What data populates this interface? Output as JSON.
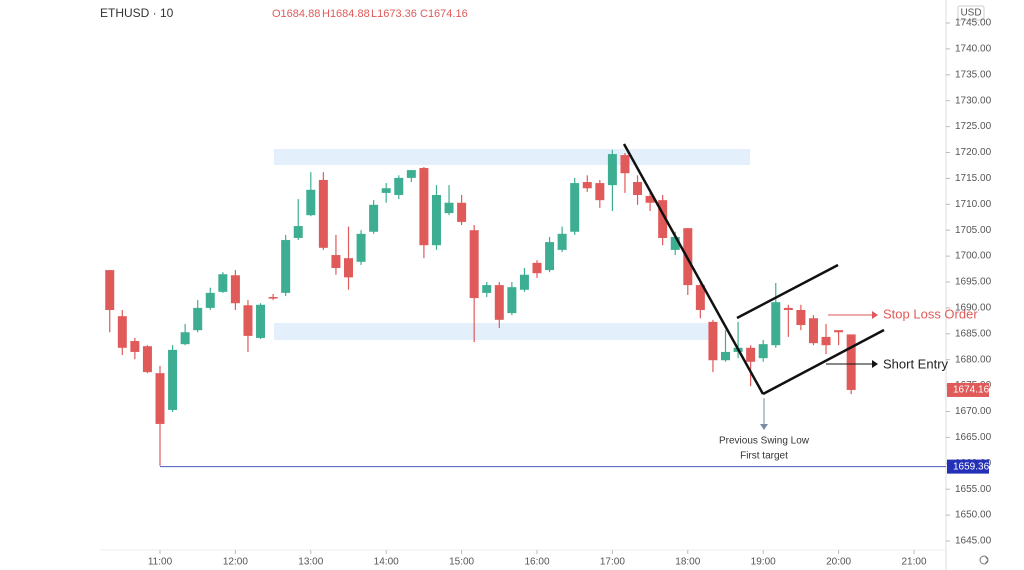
{
  "chart_data": {
    "type": "candlestick",
    "title": "ETHUSD · 10",
    "ohlc_labels": [
      "O1684.88",
      "H1684.88",
      "L1673.36",
      "C1674.16"
    ],
    "currency": "USD",
    "up_color": "#3dae92",
    "down_color": "#e05a5a",
    "x": [
      "10:20",
      "10:30",
      "10:40",
      "10:50",
      "11:00",
      "11:10",
      "11:20",
      "11:30",
      "11:40",
      "11:50",
      "12:00",
      "12:10",
      "12:20",
      "12:30",
      "12:40",
      "12:50",
      "13:00",
      "13:10",
      "13:20",
      "13:30",
      "13:40",
      "13:50",
      "14:00",
      "14:10",
      "14:20",
      "14:30",
      "14:40",
      "14:50",
      "15:00",
      "15:10",
      "15:20",
      "15:30",
      "15:40",
      "15:50",
      "16:00",
      "16:10",
      "16:20",
      "16:30",
      "16:40",
      "16:50",
      "17:00",
      "17:10",
      "17:20",
      "17:30",
      "17:40",
      "17:50",
      "18:00",
      "18:10",
      "18:20",
      "18:30",
      "18:40",
      "18:50",
      "19:00",
      "19:10",
      "19:20",
      "19:30",
      "19:40",
      "19:50",
      "20:00",
      "20:10"
    ],
    "open": [
      1697.3,
      1688.4,
      1683.6,
      1682.6,
      1677.4,
      1670.3,
      1683.0,
      1685.7,
      1690.0,
      1693.1,
      1696.3,
      1690.5,
      1684.2,
      1692.1,
      1692.9,
      1703.5,
      1707.9,
      1714.7,
      1700.2,
      1699.6,
      1698.9,
      1704.7,
      1712.2,
      1711.8,
      1715.1,
      1717.0,
      1702.1,
      1708.3,
      1710.3,
      1705.0,
      1692.9,
      1694.4,
      1689.0,
      1693.5,
      1698.7,
      1697.3,
      1701.2,
      1704.7,
      1714.3,
      1714.1,
      1713.7,
      1719.5,
      1714.3,
      1711.6,
      1710.8,
      1701.2,
      1705.4,
      1694.4,
      1687.3,
      1679.9,
      1681.5,
      1682.3,
      1680.3,
      1682.8,
      1690.0,
      1689.6,
      1688.0,
      1684.4,
      1685.7,
      1684.88
    ],
    "high": [
      1697.3,
      1689.6,
      1684.2,
      1682.8,
      1678.8,
      1682.8,
      1686.9,
      1691.5,
      1693.9,
      1696.9,
      1697.3,
      1691.5,
      1690.9,
      1692.7,
      1704.1,
      1711.0,
      1716.2,
      1716.2,
      1704.1,
      1705.7,
      1705.0,
      1710.8,
      1714.1,
      1715.6,
      1716.6,
      1717.2,
      1713.7,
      1713.7,
      1711.8,
      1706.0,
      1695.0,
      1695.0,
      1695.0,
      1697.7,
      1699.2,
      1703.7,
      1705.7,
      1715.1,
      1715.6,
      1714.7,
      1720.5,
      1719.9,
      1715.6,
      1712.8,
      1711.8,
      1704.7,
      1705.4,
      1695.4,
      1687.7,
      1685.7,
      1687.3,
      1682.8,
      1683.8,
      1694.8,
      1690.6,
      1690.6,
      1688.6,
      1686.9,
      1685.7,
      1684.88
    ],
    "low": [
      1685.3,
      1680.9,
      1680.1,
      1677.4,
      1659.5,
      1669.9,
      1682.8,
      1685.3,
      1689.6,
      1692.9,
      1689.6,
      1681.5,
      1684.0,
      1691.5,
      1692.3,
      1703.1,
      1707.7,
      1701.2,
      1696.4,
      1693.5,
      1698.3,
      1704.3,
      1710.3,
      1711.0,
      1714.3,
      1699.6,
      1701.2,
      1707.9,
      1706.0,
      1683.4,
      1692.1,
      1686.1,
      1688.6,
      1693.1,
      1695.8,
      1696.9,
      1700.8,
      1704.1,
      1712.4,
      1709.3,
      1708.7,
      1712.2,
      1709.9,
      1708.7,
      1702.1,
      1700.2,
      1692.5,
      1688.0,
      1677.6,
      1679.6,
      1680.3,
      1674.9,
      1679.6,
      1682.3,
      1684.4,
      1685.7,
      1682.8,
      1681.1,
      1682.8,
      1673.36
    ],
    "close": [
      1689.6,
      1682.3,
      1681.5,
      1677.6,
      1667.6,
      1681.9,
      1685.3,
      1690.0,
      1692.9,
      1696.5,
      1690.9,
      1684.6,
      1690.6,
      1691.8,
      1703.1,
      1705.8,
      1712.8,
      1701.6,
      1697.7,
      1695.9,
      1704.3,
      1709.9,
      1713.1,
      1715.1,
      1716.6,
      1702.1,
      1711.8,
      1710.3,
      1706.6,
      1691.9,
      1694.4,
      1687.7,
      1694.0,
      1696.4,
      1696.7,
      1702.7,
      1704.3,
      1714.1,
      1713.1,
      1710.8,
      1719.7,
      1716.0,
      1711.8,
      1710.3,
      1703.5,
      1703.7,
      1694.4,
      1689.6,
      1679.9,
      1681.5,
      1682.3,
      1679.6,
      1683.0,
      1691.1,
      1689.6,
      1686.7,
      1683.2,
      1682.8,
      1685.3,
      1674.16
    ],
    "xticks": [
      "11:00",
      "12:00",
      "13:00",
      "14:00",
      "15:00",
      "16:00",
      "17:00",
      "18:00",
      "19:00",
      "20:00",
      "21:00"
    ],
    "ylim": [
      1645,
      1745
    ],
    "yticks": [
      {
        "value": 1645,
        "label": "1645.00"
      },
      {
        "value": 1650,
        "label": "1650.00"
      },
      {
        "value": 1655,
        "label": "1655.00"
      },
      {
        "value": 1660,
        "label": "1660.00"
      },
      {
        "value": 1665,
        "label": "1665.00"
      },
      {
        "value": 1670,
        "label": "1670.00"
      },
      {
        "value": 1675,
        "label": "1675.00"
      },
      {
        "value": 1680,
        "label": "1680.00"
      },
      {
        "value": 1685,
        "label": "1685.00"
      },
      {
        "value": 1690,
        "label": "1690.00"
      },
      {
        "value": 1695,
        "label": "1695.00"
      },
      {
        "value": 1700,
        "label": "1700.00"
      },
      {
        "value": 1705,
        "label": "1705.00"
      },
      {
        "value": 1710,
        "label": "1710.00"
      },
      {
        "value": 1715,
        "label": "1715.00"
      },
      {
        "value": 1720,
        "label": "1720.00"
      },
      {
        "value": 1725,
        "label": "1725.00"
      },
      {
        "value": 1730,
        "label": "1730.00"
      },
      {
        "value": 1735,
        "label": "1735.00"
      },
      {
        "value": 1740,
        "label": "1740.00"
      },
      {
        "value": 1745,
        "label": "1745.00"
      }
    ],
    "last_price": {
      "value": 1674.16,
      "label": "1674.16"
    },
    "target_line": {
      "value": 1659.36,
      "label": "1659.36"
    },
    "annotations": [
      "Stop Loss Order",
      "Short Entry",
      "Previous Swing Low",
      "First target"
    ]
  }
}
